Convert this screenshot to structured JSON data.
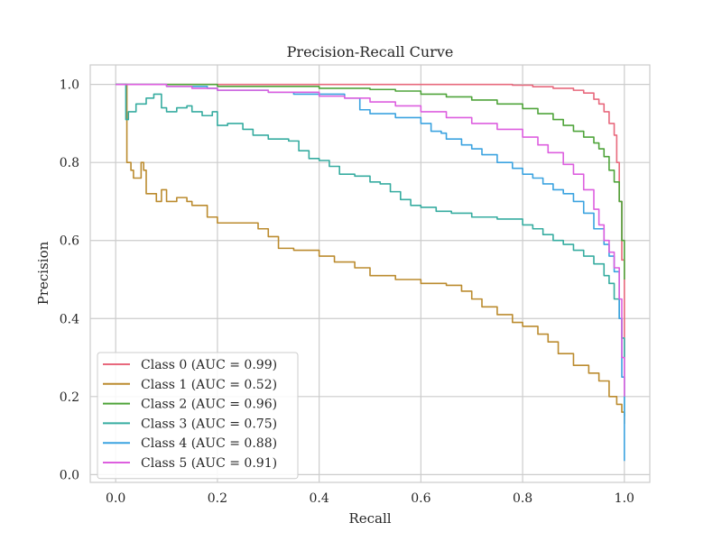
{
  "chart_data": {
    "type": "line",
    "title": "Precision-Recall Curve",
    "xlabel": "Recall",
    "ylabel": "Precision",
    "xlim": [
      -0.05,
      1.05
    ],
    "ylim": [
      -0.02,
      1.05
    ],
    "xticks": [
      0.0,
      0.2,
      0.4,
      0.6,
      0.8,
      1.0
    ],
    "yticks": [
      0.0,
      0.2,
      0.4,
      0.6,
      0.8,
      1.0
    ],
    "xtick_labels": [
      "0.0",
      "0.2",
      "0.4",
      "0.6",
      "0.8",
      "1.0"
    ],
    "ytick_labels": [
      "0.0",
      "0.2",
      "0.4",
      "0.6",
      "0.8",
      "1.0"
    ],
    "grid": true,
    "legend_position": "lower-left",
    "series": [
      {
        "name": "Class 0 (AUC = 0.99)",
        "color": "#e8697d",
        "points": [
          [
            0.0,
            1.0
          ],
          [
            0.05,
            1.0
          ],
          [
            0.1,
            1.0
          ],
          [
            0.2,
            1.0
          ],
          [
            0.3,
            1.0
          ],
          [
            0.4,
            1.0
          ],
          [
            0.5,
            1.0
          ],
          [
            0.6,
            1.0
          ],
          [
            0.7,
            1.0
          ],
          [
            0.78,
            0.998
          ],
          [
            0.82,
            0.994
          ],
          [
            0.86,
            0.99
          ],
          [
            0.9,
            0.985
          ],
          [
            0.92,
            0.978
          ],
          [
            0.94,
            0.962
          ],
          [
            0.95,
            0.95
          ],
          [
            0.96,
            0.93
          ],
          [
            0.97,
            0.9
          ],
          [
            0.98,
            0.87
          ],
          [
            0.985,
            0.8
          ],
          [
            0.99,
            0.7
          ],
          [
            0.995,
            0.55
          ],
          [
            1.0,
            0.3
          ]
        ]
      },
      {
        "name": "Class 1 (AUC = 0.52)",
        "color": "#bb8b2e",
        "points": [
          [
            0.0,
            1.0
          ],
          [
            0.02,
            1.0
          ],
          [
            0.022,
            0.97
          ],
          [
            0.022,
            0.8
          ],
          [
            0.03,
            0.78
          ],
          [
            0.035,
            0.76
          ],
          [
            0.05,
            0.8
          ],
          [
            0.055,
            0.78
          ],
          [
            0.06,
            0.72
          ],
          [
            0.07,
            0.72
          ],
          [
            0.08,
            0.7
          ],
          [
            0.09,
            0.73
          ],
          [
            0.1,
            0.7
          ],
          [
            0.12,
            0.71
          ],
          [
            0.14,
            0.7
          ],
          [
            0.15,
            0.69
          ],
          [
            0.18,
            0.66
          ],
          [
            0.2,
            0.645
          ],
          [
            0.25,
            0.645
          ],
          [
            0.28,
            0.63
          ],
          [
            0.3,
            0.61
          ],
          [
            0.32,
            0.58
          ],
          [
            0.35,
            0.575
          ],
          [
            0.4,
            0.56
          ],
          [
            0.43,
            0.545
          ],
          [
            0.47,
            0.53
          ],
          [
            0.5,
            0.51
          ],
          [
            0.55,
            0.5
          ],
          [
            0.6,
            0.49
          ],
          [
            0.65,
            0.485
          ],
          [
            0.68,
            0.47
          ],
          [
            0.7,
            0.45
          ],
          [
            0.72,
            0.43
          ],
          [
            0.75,
            0.41
          ],
          [
            0.78,
            0.39
          ],
          [
            0.8,
            0.38
          ],
          [
            0.83,
            0.36
          ],
          [
            0.85,
            0.34
          ],
          [
            0.87,
            0.31
          ],
          [
            0.9,
            0.28
          ],
          [
            0.93,
            0.26
          ],
          [
            0.95,
            0.24
          ],
          [
            0.97,
            0.2
          ],
          [
            0.985,
            0.18
          ],
          [
            0.995,
            0.16
          ],
          [
            1.0,
            0.13
          ]
        ]
      },
      {
        "name": "Class 2 (AUC = 0.96)",
        "color": "#4fa43a",
        "points": [
          [
            0.0,
            1.0
          ],
          [
            0.1,
            1.0
          ],
          [
            0.2,
            0.995
          ],
          [
            0.3,
            0.995
          ],
          [
            0.4,
            0.99
          ],
          [
            0.5,
            0.987
          ],
          [
            0.55,
            0.983
          ],
          [
            0.6,
            0.975
          ],
          [
            0.65,
            0.968
          ],
          [
            0.7,
            0.96
          ],
          [
            0.75,
            0.95
          ],
          [
            0.8,
            0.938
          ],
          [
            0.83,
            0.925
          ],
          [
            0.86,
            0.91
          ],
          [
            0.88,
            0.895
          ],
          [
            0.9,
            0.88
          ],
          [
            0.92,
            0.865
          ],
          [
            0.94,
            0.85
          ],
          [
            0.95,
            0.835
          ],
          [
            0.96,
            0.815
          ],
          [
            0.97,
            0.78
          ],
          [
            0.98,
            0.75
          ],
          [
            0.99,
            0.7
          ],
          [
            0.995,
            0.6
          ],
          [
            1.0,
            0.5
          ]
        ]
      },
      {
        "name": "Class 3 (AUC = 0.75)",
        "color": "#36aca0",
        "points": [
          [
            0.0,
            1.0
          ],
          [
            0.018,
            1.0
          ],
          [
            0.02,
            0.91
          ],
          [
            0.025,
            0.93
          ],
          [
            0.04,
            0.95
          ],
          [
            0.06,
            0.965
          ],
          [
            0.075,
            0.975
          ],
          [
            0.09,
            0.94
          ],
          [
            0.1,
            0.93
          ],
          [
            0.12,
            0.94
          ],
          [
            0.14,
            0.945
          ],
          [
            0.15,
            0.93
          ],
          [
            0.17,
            0.92
          ],
          [
            0.19,
            0.93
          ],
          [
            0.2,
            0.895
          ],
          [
            0.22,
            0.9
          ],
          [
            0.25,
            0.885
          ],
          [
            0.27,
            0.87
          ],
          [
            0.3,
            0.86
          ],
          [
            0.34,
            0.855
          ],
          [
            0.36,
            0.83
          ],
          [
            0.38,
            0.81
          ],
          [
            0.4,
            0.805
          ],
          [
            0.42,
            0.79
          ],
          [
            0.44,
            0.77
          ],
          [
            0.47,
            0.765
          ],
          [
            0.5,
            0.75
          ],
          [
            0.52,
            0.745
          ],
          [
            0.54,
            0.725
          ],
          [
            0.56,
            0.705
          ],
          [
            0.58,
            0.69
          ],
          [
            0.6,
            0.685
          ],
          [
            0.63,
            0.675
          ],
          [
            0.66,
            0.67
          ],
          [
            0.7,
            0.66
          ],
          [
            0.75,
            0.655
          ],
          [
            0.8,
            0.64
          ],
          [
            0.82,
            0.63
          ],
          [
            0.84,
            0.615
          ],
          [
            0.86,
            0.6
          ],
          [
            0.88,
            0.59
          ],
          [
            0.9,
            0.575
          ],
          [
            0.92,
            0.56
          ],
          [
            0.94,
            0.54
          ],
          [
            0.96,
            0.51
          ],
          [
            0.97,
            0.49
          ],
          [
            0.98,
            0.45
          ],
          [
            0.99,
            0.4
          ],
          [
            0.995,
            0.35
          ],
          [
            1.0,
            0.15
          ]
        ]
      },
      {
        "name": "Class 4 (AUC = 0.88)",
        "color": "#3ba3e0",
        "points": [
          [
            0.0,
            1.0
          ],
          [
            0.05,
            1.0
          ],
          [
            0.1,
            0.995
          ],
          [
            0.18,
            0.99
          ],
          [
            0.2,
            0.985
          ],
          [
            0.3,
            0.98
          ],
          [
            0.35,
            0.975
          ],
          [
            0.4,
            0.975
          ],
          [
            0.45,
            0.965
          ],
          [
            0.48,
            0.935
          ],
          [
            0.5,
            0.925
          ],
          [
            0.55,
            0.915
          ],
          [
            0.6,
            0.9
          ],
          [
            0.62,
            0.88
          ],
          [
            0.64,
            0.875
          ],
          [
            0.65,
            0.86
          ],
          [
            0.68,
            0.845
          ],
          [
            0.7,
            0.835
          ],
          [
            0.72,
            0.82
          ],
          [
            0.75,
            0.8
          ],
          [
            0.78,
            0.785
          ],
          [
            0.8,
            0.77
          ],
          [
            0.82,
            0.76
          ],
          [
            0.84,
            0.745
          ],
          [
            0.86,
            0.73
          ],
          [
            0.88,
            0.72
          ],
          [
            0.9,
            0.7
          ],
          [
            0.92,
            0.67
          ],
          [
            0.94,
            0.63
          ],
          [
            0.96,
            0.59
          ],
          [
            0.97,
            0.56
          ],
          [
            0.98,
            0.52
          ],
          [
            0.99,
            0.4
          ],
          [
            0.995,
            0.25
          ],
          [
            1.0,
            0.035
          ]
        ]
      },
      {
        "name": "Class 5 (AUC = 0.91)",
        "color": "#dd5fdf",
        "points": [
          [
            0.0,
            1.0
          ],
          [
            0.05,
            1.0
          ],
          [
            0.1,
            0.995
          ],
          [
            0.15,
            0.99
          ],
          [
            0.2,
            0.985
          ],
          [
            0.3,
            0.98
          ],
          [
            0.4,
            0.97
          ],
          [
            0.45,
            0.965
          ],
          [
            0.5,
            0.955
          ],
          [
            0.55,
            0.945
          ],
          [
            0.6,
            0.93
          ],
          [
            0.65,
            0.915
          ],
          [
            0.7,
            0.9
          ],
          [
            0.75,
            0.885
          ],
          [
            0.8,
            0.865
          ],
          [
            0.83,
            0.845
          ],
          [
            0.85,
            0.825
          ],
          [
            0.88,
            0.795
          ],
          [
            0.9,
            0.77
          ],
          [
            0.92,
            0.73
          ],
          [
            0.94,
            0.68
          ],
          [
            0.95,
            0.64
          ],
          [
            0.96,
            0.6
          ],
          [
            0.97,
            0.57
          ],
          [
            0.98,
            0.53
          ],
          [
            0.99,
            0.45
          ],
          [
            0.995,
            0.3
          ],
          [
            1.0,
            0.2
          ]
        ]
      }
    ]
  }
}
